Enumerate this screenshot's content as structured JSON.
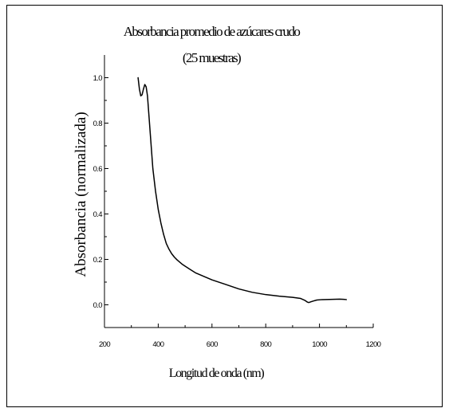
{
  "chart_data": {
    "type": "line",
    "title": "Absorbancia promedio de azúcares crudo",
    "subtitle": "(25 muestras)",
    "xlabel": "Longitud de onda (nm)",
    "ylabel": "Absorbancia (normalizada)",
    "xlim": [
      200,
      1200
    ],
    "ylim": [
      -0.1,
      1.1
    ],
    "xticks": [
      200,
      400,
      600,
      800,
      1000,
      1200
    ],
    "yticks": [
      0.0,
      0.2,
      0.4,
      0.6,
      0.8,
      1.0
    ],
    "xtick_labels": [
      "200",
      "400",
      "600",
      "800",
      "1000",
      "1200"
    ],
    "ytick_labels": [
      "0.0",
      "0.2",
      "0.4",
      "0.6",
      "0.8",
      "1.0"
    ],
    "grid": false,
    "line_color": "#000000",
    "series": [
      {
        "x": [
          325,
          330,
          335,
          340,
          345,
          350,
          355,
          360,
          365,
          370,
          375,
          380,
          385,
          390,
          395,
          400,
          410,
          420,
          430,
          440,
          450,
          460,
          470,
          480,
          490,
          500,
          520,
          540,
          560,
          580,
          600,
          650,
          700,
          750,
          800,
          850,
          900,
          930,
          945,
          955,
          960,
          965,
          975,
          990,
          1010,
          1050,
          1075,
          1090,
          1100
        ],
        "y": [
          1.0,
          0.95,
          0.92,
          0.925,
          0.95,
          0.97,
          0.96,
          0.92,
          0.84,
          0.76,
          0.68,
          0.6,
          0.55,
          0.5,
          0.46,
          0.42,
          0.36,
          0.31,
          0.27,
          0.245,
          0.225,
          0.21,
          0.198,
          0.188,
          0.178,
          0.17,
          0.155,
          0.14,
          0.13,
          0.12,
          0.11,
          0.09,
          0.07,
          0.055,
          0.045,
          0.038,
          0.033,
          0.028,
          0.02,
          0.012,
          0.01,
          0.012,
          0.016,
          0.021,
          0.023,
          0.024,
          0.025,
          0.024,
          0.023
        ]
      }
    ]
  }
}
